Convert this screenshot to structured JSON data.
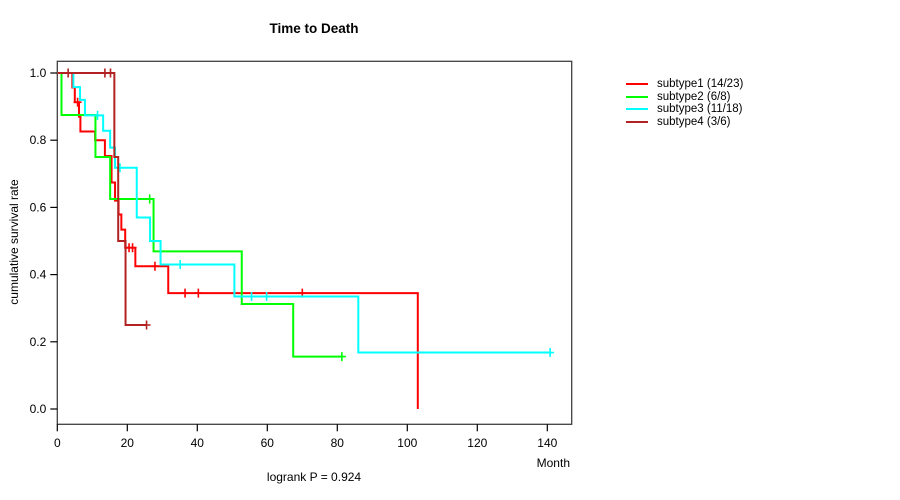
{
  "title": "Time to Death",
  "footer": {
    "logrank_label": "logrank P = 0.924"
  },
  "axes": {
    "x": {
      "label": "Month",
      "tick_labels": [
        "0",
        "20",
        "40",
        "60",
        "80",
        "100",
        "120",
        "140"
      ]
    },
    "y": {
      "label": "cumulative survival rate",
      "tick_labels": [
        "0.0",
        "0.2",
        "0.4",
        "0.6",
        "0.8",
        "1.0"
      ]
    }
  },
  "chart_data": {
    "type": "line",
    "subtype": "kaplan-meier-step",
    "title": "Time to Death",
    "xlabel": "Month",
    "ylabel": "cumulative survival rate",
    "xlim": [
      0,
      147
    ],
    "ylim": [
      0.0,
      1.0
    ],
    "xticks": [
      0,
      20,
      40,
      60,
      80,
      100,
      120,
      140
    ],
    "yticks": [
      0.0,
      0.2,
      0.4,
      0.6,
      0.8,
      1.0
    ],
    "grid": false,
    "legend_position": "right-outside",
    "annotation": "logrank P = 0.924",
    "series": [
      {
        "name": "subtype1 (14/23)",
        "color": "#ff0000",
        "steps": [
          [
            0,
            1.0
          ],
          [
            4.3,
            0.957
          ],
          [
            5.0,
            0.913
          ],
          [
            6.2,
            0.87
          ],
          [
            6.6,
            0.826
          ],
          [
            10.8,
            0.8
          ],
          [
            13.6,
            0.753
          ],
          [
            15.5,
            0.674
          ],
          [
            16.5,
            0.62
          ],
          [
            17.5,
            0.579
          ],
          [
            18.3,
            0.534
          ],
          [
            19.4,
            0.48
          ],
          [
            22.3,
            0.425
          ],
          [
            31.7,
            0.345
          ],
          [
            103,
            0.0
          ]
        ],
        "censors": [
          [
            5.8,
            0.913
          ],
          [
            20.5,
            0.48
          ],
          [
            21.5,
            0.48
          ],
          [
            27.9,
            0.425
          ],
          [
            36.5,
            0.345
          ],
          [
            40.3,
            0.345
          ],
          [
            70,
            0.345
          ]
        ],
        "end_time": 103
      },
      {
        "name": "subtype2 (6/8)",
        "color": "#00ff00",
        "steps": [
          [
            0,
            1.0
          ],
          [
            1.2,
            0.875
          ],
          [
            10.9,
            0.75
          ],
          [
            15.1,
            0.625
          ],
          [
            27.5,
            0.469
          ],
          [
            52.7,
            0.3125
          ],
          [
            67.4,
            0.156
          ]
        ],
        "censors": [
          [
            26.4,
            0.625
          ],
          [
            81.3,
            0.156
          ]
        ],
        "end_time": 81.3
      },
      {
        "name": "subtype3 (11/18)",
        "color": "#00ffff",
        "steps": [
          [
            0,
            1.0
          ],
          [
            4.6,
            0.958
          ],
          [
            6.5,
            0.92
          ],
          [
            7.9,
            0.874
          ],
          [
            13.1,
            0.828
          ],
          [
            15.1,
            0.778
          ],
          [
            16.5,
            0.718
          ],
          [
            22.7,
            0.57
          ],
          [
            26.5,
            0.5
          ],
          [
            29.5,
            0.43
          ],
          [
            50.6,
            0.335
          ],
          [
            86,
            0.168
          ]
        ],
        "censors": [
          [
            11.5,
            0.874
          ],
          [
            17.9,
            0.718
          ],
          [
            35.1,
            0.43
          ],
          [
            55.5,
            0.335
          ],
          [
            59.8,
            0.335
          ],
          [
            140.8,
            0.168
          ]
        ],
        "end_time": 140.8
      },
      {
        "name": "subtype4 (3/6)",
        "color": "#b22222",
        "steps": [
          [
            0,
            1.0
          ],
          [
            16.3,
            0.75
          ],
          [
            17.4,
            0.5
          ],
          [
            19.5,
            0.25
          ]
        ],
        "censors": [
          [
            3.1,
            1.0
          ],
          [
            13.6,
            1.0
          ],
          [
            15.2,
            1.0
          ],
          [
            25.5,
            0.25
          ]
        ],
        "end_time": 25.5
      }
    ]
  }
}
